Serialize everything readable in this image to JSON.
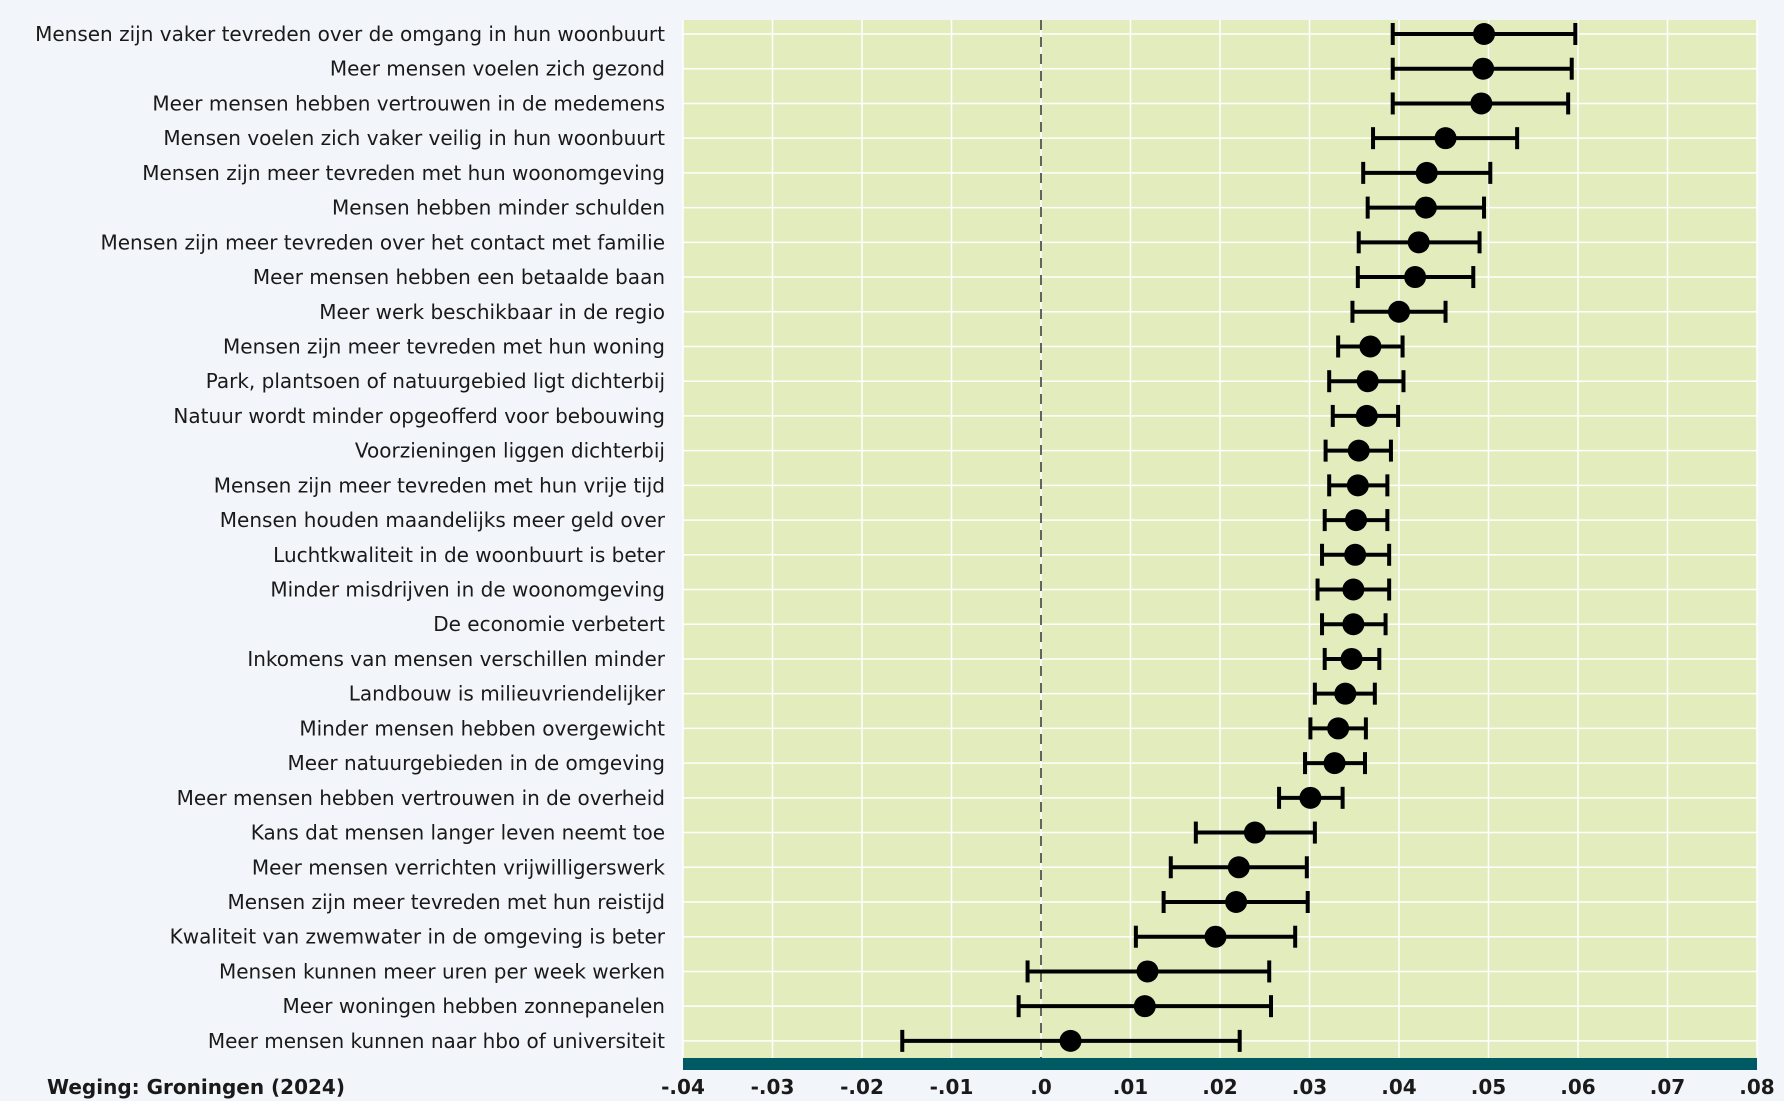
{
  "footnote": "Weging: Groningen (2024)",
  "colors": {
    "page_background": "#f2f5f9",
    "plot_background": "#e3ecbd",
    "gridline": "#ffffff",
    "axis_bar": "#005a63",
    "marker": "#000000",
    "zero_line": "#333333"
  },
  "chart_data": {
    "type": "scatter",
    "subtype": "dot-and-whisker",
    "title": "",
    "xlabel": "",
    "ylabel": "",
    "xlim": [
      -0.04,
      0.08
    ],
    "x_ticks": [
      -0.04,
      -0.03,
      -0.02,
      -0.01,
      0.0,
      0.01,
      0.02,
      0.03,
      0.04,
      0.05,
      0.06,
      0.07,
      0.08
    ],
    "x_tick_labels": [
      "-.04",
      "-.03",
      "-.02",
      "-.01",
      ".0",
      ".01",
      ".02",
      ".03",
      ".04",
      ".05",
      ".06",
      ".07",
      ".08"
    ],
    "reference_line": 0.0,
    "grid": true,
    "items": [
      {
        "label": "Mensen zijn vaker tevreden over de omgang in hun woonbuurt",
        "estimate": 0.0495,
        "low": 0.0393,
        "high": 0.0597
      },
      {
        "label": "Meer mensen voelen zich gezond",
        "estimate": 0.0494,
        "low": 0.0393,
        "high": 0.0593
      },
      {
        "label": "Meer mensen hebben vertrouwen in de medemens",
        "estimate": 0.0492,
        "low": 0.0393,
        "high": 0.0589
      },
      {
        "label": "Mensen voelen zich vaker veilig in hun woonbuurt",
        "estimate": 0.0452,
        "low": 0.0371,
        "high": 0.0532
      },
      {
        "label": "Mensen zijn meer tevreden met hun woonomgeving",
        "estimate": 0.0431,
        "low": 0.036,
        "high": 0.0502
      },
      {
        "label": "Mensen hebben minder schulden",
        "estimate": 0.043,
        "low": 0.0365,
        "high": 0.0495
      },
      {
        "label": "Mensen zijn meer tevreden over het contact met familie",
        "estimate": 0.0422,
        "low": 0.0355,
        "high": 0.049
      },
      {
        "label": "Meer mensen hebben een betaalde baan",
        "estimate": 0.0418,
        "low": 0.0354,
        "high": 0.0483
      },
      {
        "label": "Meer werk beschikbaar in de regio",
        "estimate": 0.04,
        "low": 0.0348,
        "high": 0.0452
      },
      {
        "label": "Mensen zijn meer tevreden met hun woning",
        "estimate": 0.0368,
        "low": 0.0332,
        "high": 0.0404
      },
      {
        "label": "Park, plantsoen of natuurgebied ligt dichterbij",
        "estimate": 0.0365,
        "low": 0.0322,
        "high": 0.0405
      },
      {
        "label": "Natuur wordt minder opgeofferd voor bebouwing",
        "estimate": 0.0364,
        "low": 0.0326,
        "high": 0.0399
      },
      {
        "label": "Voorzieningen liggen dichterbij",
        "estimate": 0.0355,
        "low": 0.0318,
        "high": 0.0391
      },
      {
        "label": "Mensen zijn meer tevreden met hun vrije tijd",
        "estimate": 0.0354,
        "low": 0.0322,
        "high": 0.0387
      },
      {
        "label": "Mensen houden maandelijks meer geld over",
        "estimate": 0.0352,
        "low": 0.0317,
        "high": 0.0387
      },
      {
        "label": "Luchtkwaliteit in de woonbuurt is beter",
        "estimate": 0.0351,
        "low": 0.0314,
        "high": 0.0389
      },
      {
        "label": "Minder misdrijven in de woonomgeving",
        "estimate": 0.0349,
        "low": 0.0309,
        "high": 0.0389
      },
      {
        "label": "De economie verbetert",
        "estimate": 0.0349,
        "low": 0.0314,
        "high": 0.0385
      },
      {
        "label": "Inkomens van mensen verschillen minder",
        "estimate": 0.0347,
        "low": 0.0317,
        "high": 0.0378
      },
      {
        "label": "Landbouw is milieuvriendelijker",
        "estimate": 0.034,
        "low": 0.0306,
        "high": 0.0373
      },
      {
        "label": "Minder mensen hebben overgewicht",
        "estimate": 0.0332,
        "low": 0.0301,
        "high": 0.0363
      },
      {
        "label": "Meer natuurgebieden in de omgeving",
        "estimate": 0.0328,
        "low": 0.0295,
        "high": 0.0362
      },
      {
        "label": "Meer mensen hebben vertrouwen in de overheid",
        "estimate": 0.0301,
        "low": 0.0266,
        "high": 0.0337
      },
      {
        "label": "Kans dat mensen langer leven neemt toe",
        "estimate": 0.0239,
        "low": 0.0173,
        "high": 0.0306
      },
      {
        "label": "Meer mensen verrichten vrijwilligerswerk",
        "estimate": 0.0221,
        "low": 0.0145,
        "high": 0.0297
      },
      {
        "label": "Mensen zijn meer tevreden met hun reistijd",
        "estimate": 0.0218,
        "low": 0.0137,
        "high": 0.0298
      },
      {
        "label": "Kwaliteit van zwemwater in de omgeving is beter",
        "estimate": 0.0195,
        "low": 0.0106,
        "high": 0.0284
      },
      {
        "label": "Mensen kunnen meer uren per week werken",
        "estimate": 0.0119,
        "low": -0.0015,
        "high": 0.0255
      },
      {
        "label": "Meer woningen hebben zonnepanelen",
        "estimate": 0.0116,
        "low": -0.0025,
        "high": 0.0257
      },
      {
        "label": "Meer mensen kunnen naar hbo of universiteit",
        "estimate": 0.0033,
        "low": -0.0155,
        "high": 0.0222
      }
    ]
  }
}
